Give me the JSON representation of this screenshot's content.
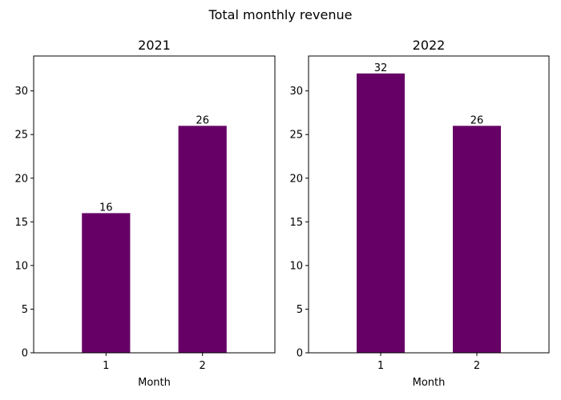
{
  "title": "Total monthly revenue",
  "bar_color": "#660066",
  "chart_data": [
    {
      "type": "bar",
      "title": "2021",
      "categories": [
        "1",
        "2"
      ],
      "values": [
        16,
        26
      ],
      "data_labels": [
        "16",
        "26"
      ],
      "xlabel": "Month",
      "ylabel": "",
      "ylim": [
        0,
        34
      ],
      "yticks": [
        0,
        5,
        10,
        15,
        20,
        25,
        30
      ],
      "grid": false,
      "legend": "none"
    },
    {
      "type": "bar",
      "title": "2022",
      "categories": [
        "1",
        "2"
      ],
      "values": [
        32,
        26
      ],
      "data_labels": [
        "32",
        "26"
      ],
      "xlabel": "Month",
      "ylabel": "",
      "ylim": [
        0,
        34
      ],
      "yticks": [
        0,
        5,
        10,
        15,
        20,
        25,
        30
      ],
      "grid": false,
      "legend": "none"
    }
  ]
}
